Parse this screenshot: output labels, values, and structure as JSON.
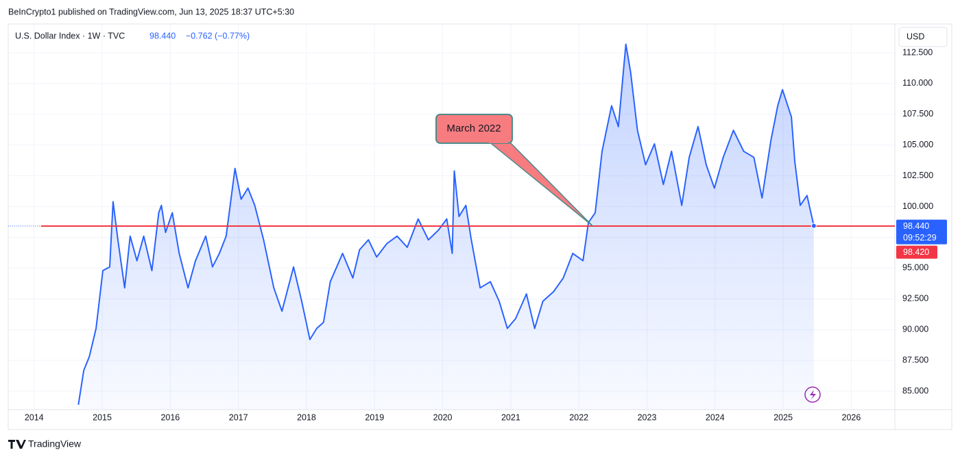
{
  "header": {
    "published": "BeInCrypto1 published on TradingView.com, Jun 13, 2025 18:37 UTC+5:30",
    "symbol": "U.S. Dollar Index · 1W · TVC",
    "price": "98.440",
    "change": "−0.762 (−0.77%)",
    "currency": "USD",
    "countdown": "09:52:29",
    "brand": "TradingView"
  },
  "chart_data": {
    "type": "area",
    "x": [
      2014.65,
      2014.73,
      2014.81,
      2014.91,
      2015.01,
      2015.11,
      2015.16,
      2015.23,
      2015.33,
      2015.41,
      2015.51,
      2015.61,
      2015.73,
      2015.83,
      2015.87,
      2015.93,
      2016.03,
      2016.13,
      2016.26,
      2016.37,
      2016.52,
      2016.62,
      2016.72,
      2016.82,
      2016.95,
      2017.04,
      2017.14,
      2017.24,
      2017.37,
      2017.52,
      2017.64,
      2017.81,
      2017.93,
      2018.05,
      2018.15,
      2018.25,
      2018.35,
      2018.53,
      2018.68,
      2018.78,
      2018.91,
      2019.03,
      2019.18,
      2019.33,
      2019.48,
      2019.64,
      2019.79,
      2019.94,
      2020.06,
      2020.14,
      2020.17,
      2020.24,
      2020.34,
      2020.42,
      2020.55,
      2020.7,
      2020.83,
      2020.95,
      2021.07,
      2021.23,
      2021.35,
      2021.47,
      2021.63,
      2021.77,
      2021.91,
      2022.06,
      2022.14,
      2022.24,
      2022.34,
      2022.48,
      2022.58,
      2022.69,
      2022.76,
      2022.86,
      2022.98,
      2023.11,
      2023.24,
      2023.36,
      2023.51,
      2023.62,
      2023.75,
      2023.87,
      2023.99,
      2024.12,
      2024.27,
      2024.42,
      2024.57,
      2024.69,
      2024.82,
      2024.92,
      2024.99,
      2025.12,
      2025.17,
      2025.25,
      2025.35,
      2025.45
    ],
    "series": [
      {
        "name": "U.S. Dollar Index",
        "color": "#2962ff",
        "values": [
          83.9,
          86.7,
          87.8,
          90.1,
          94.8,
          95.1,
          100.4,
          97.3,
          93.4,
          97.6,
          95.6,
          97.6,
          94.8,
          99.5,
          100.1,
          97.9,
          99.5,
          96.2,
          93.4,
          95.6,
          97.6,
          95.1,
          96.2,
          97.6,
          103.1,
          100.6,
          101.5,
          100.1,
          97.3,
          93.4,
          91.5,
          95.1,
          92.3,
          89.2,
          90.1,
          90.6,
          93.9,
          96.2,
          94.2,
          96.5,
          97.3,
          95.9,
          97.0,
          97.6,
          96.7,
          99.0,
          97.3,
          98.1,
          99.0,
          96.2,
          102.9,
          99.2,
          100.1,
          97.3,
          93.4,
          93.9,
          92.3,
          90.1,
          90.9,
          92.9,
          90.1,
          92.3,
          93.1,
          94.2,
          96.2,
          95.6,
          98.7,
          99.5,
          104.5,
          108.2,
          106.5,
          113.2,
          110.9,
          106.2,
          103.4,
          105.1,
          101.8,
          104.5,
          100.1,
          104.0,
          106.5,
          103.4,
          101.5,
          104.0,
          106.2,
          104.5,
          104.0,
          100.7,
          105.4,
          108.2,
          109.5,
          107.3,
          103.7,
          100.1,
          100.9,
          98.44
        ]
      }
    ],
    "xlim": [
      2013.62,
      2026.64
    ],
    "xticks": [
      2014,
      2015,
      2016,
      2017,
      2018,
      2019,
      2020,
      2021,
      2022,
      2023,
      2024,
      2025,
      2026
    ],
    "ylim": [
      83.5,
      114.84
    ],
    "yticks": [
      {
        "value": 85,
        "label": "85.000"
      },
      {
        "value": 87.5,
        "label": "87.500"
      },
      {
        "value": 90,
        "label": "90.000"
      },
      {
        "value": 92.5,
        "label": "92.500"
      },
      {
        "value": 95,
        "label": "95.000"
      },
      {
        "value": 97.5,
        "label": "97.500"
      },
      {
        "value": 100,
        "label": "100.000"
      },
      {
        "value": 102.5,
        "label": "102.500"
      },
      {
        "value": 105,
        "label": "105.000"
      },
      {
        "value": 107.5,
        "label": "107.500"
      },
      {
        "value": 110,
        "label": "110.000"
      },
      {
        "value": 112.5,
        "label": "112.500"
      }
    ],
    "grid": true,
    "last_price": {
      "value": 98.44,
      "label": "98.440",
      "color": "#2962ff"
    },
    "price_line": {
      "value": 98.42,
      "label": "98.420",
      "color": "#f23645"
    },
    "annotation": {
      "text": "March 2022",
      "x": 2022.2,
      "y": 98.44,
      "color": "#f77c80"
    }
  }
}
